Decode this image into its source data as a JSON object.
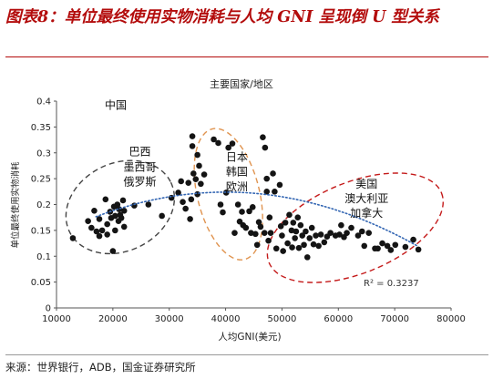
{
  "figure": {
    "title": "图表8：单位最终使用实物消耗与人均 GNI 呈现倒 U 型关系",
    "source": "来源：世界银行，ADB，国金证券研究所"
  },
  "colors": {
    "title": "#b30c0c",
    "point": "#141414",
    "trend": "#3366b3",
    "ellipse_gray": "#444444",
    "ellipse_orange": "#e09450",
    "ellipse_red": "#c41a1a"
  },
  "chart_data": {
    "type": "scatter",
    "title": "主要国家/地区",
    "xlabel": "人均GNI(美元)",
    "ylabel": "单位最终使用实物消耗",
    "xlim": [
      10000,
      80000
    ],
    "ylim": [
      0,
      0.4
    ],
    "xticks": [
      "10000",
      "20000",
      "30000",
      "40000",
      "50000",
      "60000",
      "70000",
      "80000"
    ],
    "yticks": [
      "0",
      "0.05",
      "0.1",
      "0.15",
      "0.2",
      "0.25",
      "0.3",
      "0.35",
      "0.4"
    ],
    "grid": false,
    "trendline": {
      "type": "polynomial-2",
      "r2_label": "R² = 0.3237",
      "x_range": [
        17000,
        74000
      ],
      "coef": [
        0.08,
        7.2e-06,
        -9e-11
      ]
    },
    "annotations": [
      {
        "text": "中国",
        "x": 20500,
        "y": 0.385
      },
      {
        "text": "巴西",
        "x": 24800,
        "y": 0.295
      },
      {
        "text": "墨西哥",
        "x": 24800,
        "y": 0.265
      },
      {
        "text": "俄罗斯",
        "x": 24800,
        "y": 0.237
      },
      {
        "text": "日本",
        "x": 42000,
        "y": 0.285
      },
      {
        "text": "韩国",
        "x": 42000,
        "y": 0.256
      },
      {
        "text": "欧洲",
        "x": 42000,
        "y": 0.227
      },
      {
        "text": "美国",
        "x": 65000,
        "y": 0.233
      },
      {
        "text": "澳大利亚",
        "x": 65000,
        "y": 0.204
      },
      {
        "text": "加拿大",
        "x": 65000,
        "y": 0.176
      }
    ],
    "groups": [
      {
        "label": "中国/巴西/墨西哥/俄罗斯",
        "ellipse_color": "gray",
        "center": [
          21300,
          0.195
        ],
        "semi_axes": [
          10000,
          0.085
        ],
        "rotation_deg": -26
      },
      {
        "label": "日本/韩国/欧洲",
        "ellipse_color": "orange",
        "center": [
          40500,
          0.22
        ],
        "semi_axes": [
          0.13,
          5500
        ],
        "rotation_deg": -14
      },
      {
        "label": "美国/澳大利亚/加拿大",
        "ellipse_color": "red",
        "center": [
          63000,
          0.155
        ],
        "semi_axes": [
          16500,
          0.088
        ],
        "rotation_deg": -22
      }
    ],
    "points": [
      [
        12900,
        0.135
      ],
      [
        15600,
        0.168
      ],
      [
        16200,
        0.155
      ],
      [
        16700,
        0.188
      ],
      [
        17100,
        0.148
      ],
      [
        17600,
        0.172
      ],
      [
        17600,
        0.139
      ],
      [
        18100,
        0.15
      ],
      [
        18700,
        0.21
      ],
      [
        19000,
        0.162
      ],
      [
        19000,
        0.142
      ],
      [
        19500,
        0.186
      ],
      [
        19700,
        0.174
      ],
      [
        20000,
        0.11
      ],
      [
        20200,
        0.196
      ],
      [
        20400,
        0.178
      ],
      [
        20400,
        0.15
      ],
      [
        20800,
        0.2
      ],
      [
        21000,
        0.168
      ],
      [
        21100,
        0.191
      ],
      [
        21300,
        0.18
      ],
      [
        21500,
        0.174
      ],
      [
        21800,
        0.208
      ],
      [
        22000,
        0.188
      ],
      [
        22000,
        0.157
      ],
      [
        23800,
        0.198
      ],
      [
        26300,
        0.2
      ],
      [
        28700,
        0.178
      ],
      [
        30400,
        0.213
      ],
      [
        31600,
        0.223
      ],
      [
        32100,
        0.245
      ],
      [
        32400,
        0.205
      ],
      [
        32900,
        0.192
      ],
      [
        33400,
        0.242
      ],
      [
        33700,
        0.172
      ],
      [
        33900,
        0.21
      ],
      [
        34100,
        0.332
      ],
      [
        34100,
        0.313
      ],
      [
        34300,
        0.26
      ],
      [
        34700,
        0.249
      ],
      [
        35000,
        0.296
      ],
      [
        35000,
        0.22
      ],
      [
        35300,
        0.275
      ],
      [
        35600,
        0.24
      ],
      [
        36200,
        0.258
      ],
      [
        37900,
        0.326
      ],
      [
        38700,
        0.319
      ],
      [
        39100,
        0.2
      ],
      [
        39500,
        0.185
      ],
      [
        40100,
        0.223
      ],
      [
        40500,
        0.31
      ],
      [
        41200,
        0.318
      ],
      [
        41600,
        0.145
      ],
      [
        42200,
        0.2
      ],
      [
        42500,
        0.167
      ],
      [
        42900,
        0.186
      ],
      [
        43100,
        0.16
      ],
      [
        43600,
        0.155
      ],
      [
        44200,
        0.187
      ],
      [
        44500,
        0.145
      ],
      [
        44800,
        0.195
      ],
      [
        45300,
        0.143
      ],
      [
        45600,
        0.122
      ],
      [
        45900,
        0.166
      ],
      [
        46200,
        0.157
      ],
      [
        46600,
        0.33
      ],
      [
        46900,
        0.145
      ],
      [
        47000,
        0.31
      ],
      [
        47300,
        0.25
      ],
      [
        47300,
        0.225
      ],
      [
        47600,
        0.13
      ],
      [
        47800,
        0.175
      ],
      [
        48000,
        0.145
      ],
      [
        48400,
        0.26
      ],
      [
        48700,
        0.225
      ],
      [
        49000,
        0.115
      ],
      [
        49600,
        0.238
      ],
      [
        49800,
        0.158
      ],
      [
        50000,
        0.14
      ],
      [
        50200,
        0.11
      ],
      [
        50600,
        0.165
      ],
      [
        51000,
        0.125
      ],
      [
        51300,
        0.18
      ],
      [
        51700,
        0.15
      ],
      [
        51800,
        0.117
      ],
      [
        52000,
        0.165
      ],
      [
        52300,
        0.135
      ],
      [
        52500,
        0.148
      ],
      [
        52800,
        0.175
      ],
      [
        53000,
        0.116
      ],
      [
        53300,
        0.16
      ],
      [
        53600,
        0.14
      ],
      [
        53900,
        0.122
      ],
      [
        54200,
        0.148
      ],
      [
        54500,
        0.098
      ],
      [
        54900,
        0.135
      ],
      [
        55300,
        0.155
      ],
      [
        55600,
        0.123
      ],
      [
        56000,
        0.14
      ],
      [
        56500,
        0.12
      ],
      [
        56900,
        0.142
      ],
      [
        57500,
        0.127
      ],
      [
        58000,
        0.138
      ],
      [
        58600,
        0.145
      ],
      [
        59500,
        0.14
      ],
      [
        60200,
        0.142
      ],
      [
        60500,
        0.16
      ],
      [
        61000,
        0.137
      ],
      [
        61500,
        0.145
      ],
      [
        62300,
        0.155
      ],
      [
        63500,
        0.14
      ],
      [
        64200,
        0.148
      ],
      [
        64600,
        0.12
      ],
      [
        65400,
        0.145
      ],
      [
        66500,
        0.115
      ],
      [
        67000,
        0.115
      ],
      [
        67800,
        0.125
      ],
      [
        68700,
        0.12
      ],
      [
        69300,
        0.112
      ],
      [
        70100,
        0.122
      ],
      [
        71900,
        0.118
      ],
      [
        73300,
        0.132
      ],
      [
        74200,
        0.113
      ]
    ]
  }
}
